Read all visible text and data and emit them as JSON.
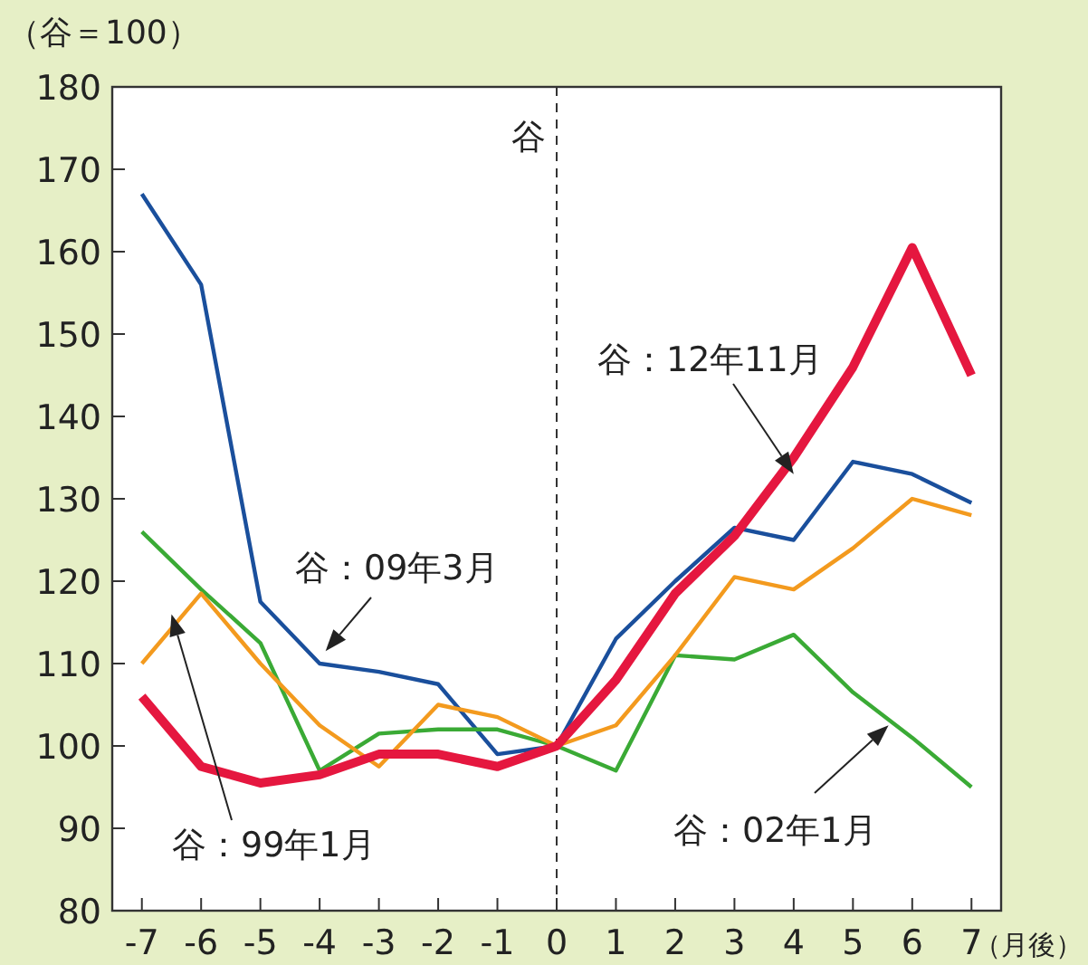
{
  "chart_data": {
    "type": "line",
    "ylabel": "（谷＝100）",
    "xlabel": "（月後）",
    "x": [
      -7,
      -6,
      -5,
      -4,
      -3,
      -2,
      -1,
      0,
      1,
      2,
      3,
      4,
      5,
      6,
      7
    ],
    "xlim": [
      -7.5,
      7.5
    ],
    "xticks": [
      -7,
      -6,
      -5,
      -4,
      -3,
      -2,
      -1,
      0,
      1,
      2,
      3,
      4,
      5,
      6,
      7
    ],
    "ylim": [
      80,
      180
    ],
    "yticks": [
      80,
      90,
      100,
      110,
      120,
      130,
      140,
      150,
      160,
      170,
      180
    ],
    "grid": false,
    "legend": false,
    "marker": "none",
    "line_style": "solid",
    "ref_lines": [
      {
        "axis": "x",
        "value": 0,
        "label": "谷",
        "color": "#333333",
        "line_style": "dashed"
      }
    ],
    "series": [
      {
        "name": "谷：09年3月",
        "color": "#1a4f9c",
        "values": [
          167,
          156,
          117.5,
          110,
          109,
          107.5,
          99,
          100,
          113,
          120,
          126.5,
          125,
          134.5,
          133,
          129.5
        ]
      },
      {
        "name": "谷：02年1月",
        "color": "#3aaa35",
        "values": [
          126,
          119,
          112.5,
          97,
          101.5,
          102,
          102,
          100,
          97,
          111,
          110.5,
          113.5,
          106.5,
          101,
          95
        ]
      },
      {
        "name": "谷：99年1月",
        "color": "#f39a1e",
        "values": [
          110,
          118.5,
          110,
          102.5,
          97.5,
          105,
          103.5,
          100,
          102.5,
          111,
          120.5,
          119,
          124,
          130,
          128
        ]
      },
      {
        "name": "谷：12年11月",
        "color": "#e5173f",
        "values": [
          106,
          97.5,
          95.5,
          96.5,
          99,
          99,
          97.5,
          100,
          108,
          118.5,
          125.5,
          135,
          146,
          160.5,
          145
        ]
      }
    ]
  }
}
